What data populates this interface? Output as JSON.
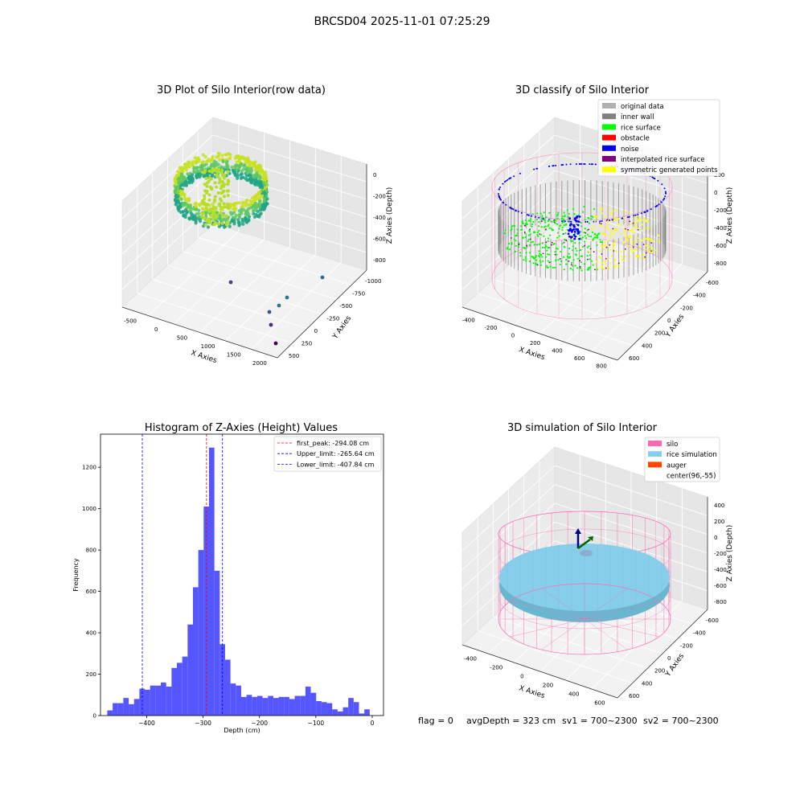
{
  "suptitle": "BRCSD04 2025-11-01 07:25:29",
  "footer": {
    "flag": "flag = 0",
    "avg_depth": "avgDepth = 323 cm",
    "sv1": "sv1 = 700~2300",
    "sv2": "sv2 = 700~2300"
  },
  "colors": {
    "hist_bar": "#4d4dff",
    "peak_line": "#ff0000",
    "limit_line": "#0000ff",
    "silo": "#ff69b4",
    "rice_sim": "#87ceeb",
    "auger": "#ff4500",
    "original": "#b0b0b0",
    "inner_wall": "#808080",
    "rice_surface": "#00ff00",
    "obstacle": "#ff0000",
    "noise": "#0000ff",
    "interpolated": "#800080",
    "symmetric": "#ffff00"
  },
  "chart_data": [
    {
      "type": "scatter",
      "title": "3D Plot of Silo Interior(row data)",
      "xlabel": "X Axies",
      "ylabel": "Y Axies",
      "zlabel": "Z Axies (Depth)",
      "xticks": [
        "-500",
        "0",
        "500",
        "1000",
        "1500",
        "2000"
      ],
      "yticks": [
        "-1000",
        "-750",
        "-500",
        "-250",
        "0",
        "250",
        "500"
      ],
      "zticks": [
        "0",
        "-200",
        "-400",
        "-600",
        "-800"
      ]
    },
    {
      "type": "scatter",
      "title": "3D classify of Silo Interior",
      "xlabel": "X Axies",
      "ylabel": "Y Axies",
      "zlabel": "Z Axies (Depth)",
      "xticks": [
        "-400",
        "-200",
        "0",
        "200",
        "400",
        "600",
        "800"
      ],
      "yticks": [
        "-600",
        "-400",
        "-200",
        "0",
        "200",
        "400",
        "600"
      ],
      "zticks": [
        "200",
        "0",
        "-200",
        "-400",
        "-600",
        "-800"
      ],
      "legend": [
        {
          "label": "original data",
          "color": "#b0b0b0"
        },
        {
          "label": "inner wall",
          "color": "#808080"
        },
        {
          "label": "rice surface",
          "color": "#00ff00"
        },
        {
          "label": "obstacle",
          "color": "#ff0000"
        },
        {
          "label": "noise",
          "color": "#0000ff"
        },
        {
          "label": "interpolated rice surface",
          "color": "#800080"
        },
        {
          "label": "symmetric generated points",
          "color": "#ffff00"
        }
      ],
      "legend_loc": "upper right"
    },
    {
      "type": "bar",
      "title": "Histogram of Z-Axies (Height) Values",
      "xlabel": "Depth (cm)",
      "ylabel": "Frequency",
      "xlim": [
        -482,
        20
      ],
      "ylim": [
        0,
        1360
      ],
      "xticks": [
        -400,
        -300,
        -200,
        -100,
        0
      ],
      "yticks": [
        0,
        200,
        400,
        600,
        800,
        1000,
        1200
      ],
      "bin_start": -470,
      "bin_width": 9.5,
      "values": [
        25,
        60,
        60,
        85,
        55,
        80,
        130,
        125,
        145,
        145,
        160,
        140,
        230,
        255,
        285,
        440,
        620,
        800,
        1010,
        1295,
        700,
        345,
        270,
        155,
        145,
        90,
        100,
        90,
        95,
        85,
        95,
        85,
        90,
        90,
        80,
        95,
        95,
        140,
        110,
        70,
        65,
        60,
        30,
        20,
        40,
        85,
        65,
        10,
        30
      ],
      "vlines": [
        {
          "x": -294.08,
          "label": "first_peak: -294.08 cm",
          "color": "#ff0000"
        },
        {
          "x": -265.64,
          "label": "Upper_limit: -265.64 cm",
          "color": "#0000ff"
        },
        {
          "x": -407.84,
          "label": "Lower_limit: -407.84 cm",
          "color": "#0000ff"
        }
      ],
      "legend_loc": "upper right"
    },
    {
      "type": "scatter",
      "title": "3D simulation of Silo Interior",
      "xlabel": "X Axies",
      "ylabel": "Y Axies",
      "zlabel": "Z Axies (Depth)",
      "xticks": [
        "-400",
        "-200",
        "0",
        "200",
        "400",
        "600"
      ],
      "yticks": [
        "-600",
        "-400",
        "-200",
        "0",
        "200",
        "400",
        "600"
      ],
      "zticks": [
        "400",
        "200",
        "0",
        "-200",
        "-400",
        "-600",
        "-800"
      ],
      "legend": [
        {
          "label": "silo",
          "color": "#ff69b4"
        },
        {
          "label": "rice simulation",
          "color": "#87ceeb"
        },
        {
          "label": "auger",
          "color": "#ff4500"
        },
        {
          "label": "center(96,-55)",
          "color": ""
        }
      ],
      "legend_loc": "upper right"
    }
  ]
}
